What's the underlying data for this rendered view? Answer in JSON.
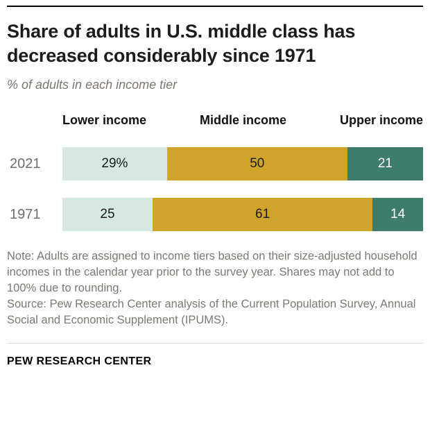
{
  "header": {
    "title": "Share of adults in U.S. middle class has decreased considerably since 1971",
    "subtitle": "% of adults in each income tier"
  },
  "chart_data": {
    "type": "bar",
    "orientation": "horizontal-stacked",
    "xlim": [
      0,
      100
    ],
    "grid": false,
    "segment_names": [
      "Lower income",
      "Middle income",
      "Upper income"
    ],
    "segment_colors": [
      "#d6e8e1",
      "#d0a42b",
      "#3e7d6c"
    ],
    "segment_text_colors": [
      "#1a1a1a",
      "#1a1a1a",
      "#ffffff"
    ],
    "rows": [
      {
        "label": "2021",
        "values": [
          29,
          50,
          21
        ],
        "value_labels": [
          "29%",
          "50",
          "21"
        ]
      },
      {
        "label": "1971",
        "values": [
          25,
          61,
          14
        ],
        "value_labels": [
          "25",
          "61",
          "14"
        ]
      }
    ]
  },
  "footer": {
    "note": "Note: Adults are assigned to income tiers based on their size-adjusted household incomes in the calendar year prior to the survey year. Shares may not add to 100% due to rounding.",
    "source": "Source: Pew Research Center analysis of the Current Population Survey, Annual Social and Economic Supplement (IPUMS).",
    "brand": "PEW RESEARCH CENTER"
  }
}
